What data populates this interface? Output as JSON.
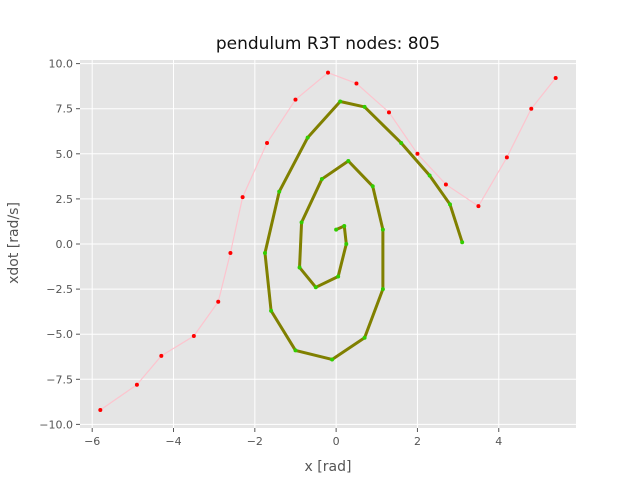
{
  "chart_data": {
    "type": "scatter",
    "title": "pendulum R3T nodes: 805",
    "xlabel": "x [rad]",
    "ylabel": "xdot [rad/s]",
    "xlim": [
      -6.3,
      5.9
    ],
    "ylim": [
      -10.2,
      10.2
    ],
    "xticks": [
      -6,
      -4,
      -2,
      0,
      2,
      4
    ],
    "yticks": [
      -10.0,
      -7.5,
      -5.0,
      -2.5,
      0.0,
      2.5,
      5.0,
      7.5,
      10.0
    ],
    "grid": true,
    "colors": {
      "background": "#e5e5e5",
      "grid": "#ffffff",
      "tree_edges": "#ffc0cb",
      "nodes": "#ff0000",
      "solution_path": "#808000",
      "solution_nodes": "#33cc00"
    },
    "series": [
      {
        "name": "",
        "kind": "tree_edges",
        "points": [
          [
            -5.8,
            -9.2
          ],
          [
            -4.9,
            -7.8
          ],
          [
            -4.3,
            -6.2
          ],
          [
            -3.5,
            -5.1
          ],
          [
            -2.9,
            -3.2
          ],
          [
            -2.6,
            -0.5
          ],
          [
            -2.3,
            2.6
          ],
          [
            -1.7,
            5.6
          ],
          [
            -1.0,
            8.0
          ],
          [
            -0.2,
            9.5
          ],
          [
            0.5,
            8.9
          ],
          [
            1.3,
            7.3
          ],
          [
            2.0,
            5.0
          ],
          [
            2.7,
            3.3
          ],
          [
            3.5,
            2.1
          ],
          [
            4.2,
            4.8
          ],
          [
            4.8,
            7.5
          ],
          [
            5.4,
            9.2
          ]
        ]
      },
      {
        "name": "",
        "kind": "solution_path",
        "points": [
          [
            0.0,
            0.8
          ],
          [
            0.2,
            1.0
          ],
          [
            0.25,
            0.0
          ],
          [
            0.05,
            -1.8
          ],
          [
            -0.5,
            -2.4
          ],
          [
            -0.9,
            -1.3
          ],
          [
            -0.85,
            1.2
          ],
          [
            -0.35,
            3.6
          ],
          [
            0.3,
            4.6
          ],
          [
            0.9,
            3.2
          ],
          [
            1.15,
            0.8
          ],
          [
            1.15,
            -2.5
          ],
          [
            0.7,
            -5.2
          ],
          [
            -0.1,
            -6.4
          ],
          [
            -1.0,
            -5.9
          ],
          [
            -1.6,
            -3.7
          ],
          [
            -1.75,
            -0.5
          ],
          [
            -1.4,
            2.9
          ],
          [
            -0.7,
            5.9
          ],
          [
            0.1,
            7.9
          ],
          [
            0.7,
            7.6
          ],
          [
            1.6,
            5.6
          ],
          [
            2.3,
            3.8
          ],
          [
            2.8,
            2.2
          ],
          [
            3.1,
            0.1
          ]
        ]
      }
    ]
  }
}
